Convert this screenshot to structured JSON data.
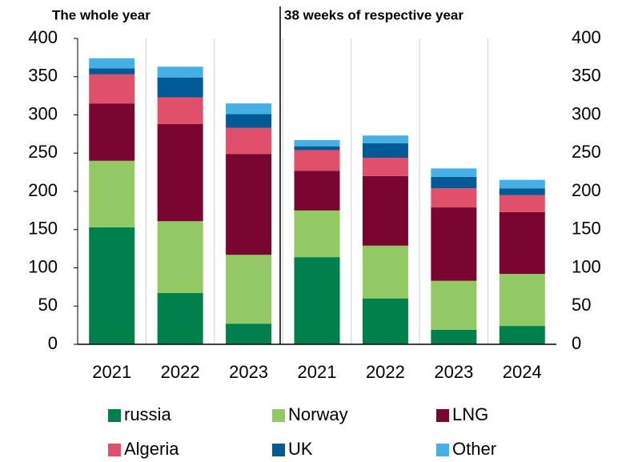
{
  "chart_data": {
    "type": "stacked_bar",
    "annotations": [
      "The whole year",
      "38 weeks of respective year"
    ],
    "categories": [
      "2021",
      "2022",
      "2023",
      "2021",
      "2022",
      "2023",
      "2024"
    ],
    "series": [
      {
        "name": "russia",
        "color": "#00804a",
        "values": [
          153,
          67,
          27,
          114,
          60,
          19,
          24
        ]
      },
      {
        "name": "Norway",
        "color": "#92c965",
        "values": [
          87,
          94,
          90,
          61,
          69,
          64,
          68
        ]
      },
      {
        "name": "LNG",
        "color": "#7a0530",
        "values": [
          75,
          127,
          132,
          52,
          91,
          96,
          81
        ]
      },
      {
        "name": "Algeria",
        "color": "#e0506a",
        "values": [
          38,
          35,
          34,
          27,
          24,
          25,
          22
        ]
      },
      {
        "name": "UK",
        "color": "#005a96",
        "values": [
          8,
          26,
          18,
          5,
          19,
          15,
          9
        ]
      },
      {
        "name": "Other",
        "color": "#44b0e4",
        "values": [
          13,
          14,
          14,
          8,
          10,
          11,
          11
        ]
      }
    ],
    "ylim": [
      0,
      400
    ],
    "yticks": [
      0,
      50,
      100,
      150,
      200,
      250,
      300,
      350,
      400
    ],
    "y2lim": [
      0,
      400
    ],
    "y2ticks": [
      0,
      50,
      100,
      150,
      200,
      250,
      300,
      350,
      400
    ],
    "legend": "bottom"
  }
}
